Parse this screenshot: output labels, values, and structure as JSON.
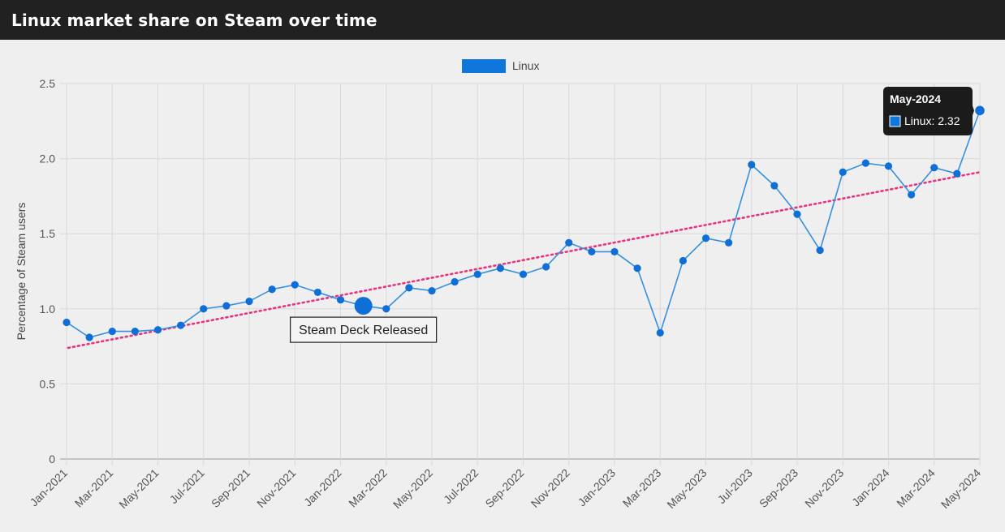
{
  "header": {
    "title": "Linux market share on Steam over time"
  },
  "colors": {
    "line": "#3590e0",
    "point": "#0f6fd6",
    "legend": "#0f77dc",
    "trend": "#e8337e",
    "tooltip_bg": "#1b1b1b",
    "grid": "#d8d8d8",
    "header_bg": "#212121"
  },
  "chart_data": {
    "type": "line",
    "ylabel": "Percentage of Steam users",
    "ylim": [
      0,
      2.5
    ],
    "y_ticks": [
      "0",
      "0.5",
      "1.0",
      "1.5",
      "2.0",
      "2.5"
    ],
    "x_tick_labels": [
      "Jan-2021",
      "Mar-2021",
      "May-2021",
      "Jul-2021",
      "Sep-2021",
      "Nov-2021",
      "Jan-2022",
      "Mar-2022",
      "May-2022",
      "Jul-2022",
      "Sep-2022",
      "Nov-2022",
      "Jan-2023",
      "Mar-2023",
      "May-2023",
      "Jul-2023",
      "Sep-2023",
      "Nov-2023",
      "Jan-2024",
      "Mar-2024",
      "May-2024"
    ],
    "legend": "top-center",
    "series": [
      {
        "name": "Linux",
        "x": [
          "Jan-2021",
          "Feb-2021",
          "Mar-2021",
          "Apr-2021",
          "May-2021",
          "Jun-2021",
          "Jul-2021",
          "Aug-2021",
          "Sep-2021",
          "Oct-2021",
          "Nov-2021",
          "Dec-2021",
          "Jan-2022",
          "Feb-2022",
          "Mar-2022",
          "Apr-2022",
          "May-2022",
          "Jun-2022",
          "Jul-2022",
          "Aug-2022",
          "Sep-2022",
          "Oct-2022",
          "Nov-2022",
          "Dec-2022",
          "Jan-2023",
          "Feb-2023",
          "Mar-2023",
          "Apr-2023",
          "May-2023",
          "Jun-2023",
          "Jul-2023",
          "Aug-2023",
          "Sep-2023",
          "Oct-2023",
          "Nov-2023",
          "Dec-2023",
          "Jan-2024",
          "Feb-2024",
          "Mar-2024",
          "Apr-2024",
          "May-2024"
        ],
        "values": [
          0.91,
          0.81,
          0.85,
          0.85,
          0.86,
          0.89,
          1.0,
          1.02,
          1.05,
          1.13,
          1.16,
          1.11,
          1.06,
          1.02,
          1.0,
          1.14,
          1.12,
          1.18,
          1.23,
          1.27,
          1.23,
          1.28,
          1.44,
          1.38,
          1.38,
          1.27,
          0.84,
          1.32,
          1.47,
          1.44,
          1.96,
          1.82,
          1.63,
          1.39,
          1.91,
          1.97,
          1.95,
          1.76,
          1.94,
          1.9,
          2.32
        ]
      }
    ],
    "trendline": {
      "style": "dotted",
      "start": 0.74,
      "end": 1.91
    },
    "annotation": {
      "text": "Steam Deck Released",
      "x": "Feb-2022",
      "y": 1.02
    },
    "tooltip": {
      "title": "May-2024",
      "label": "Linux: 2.32",
      "x": "May-2024"
    }
  }
}
